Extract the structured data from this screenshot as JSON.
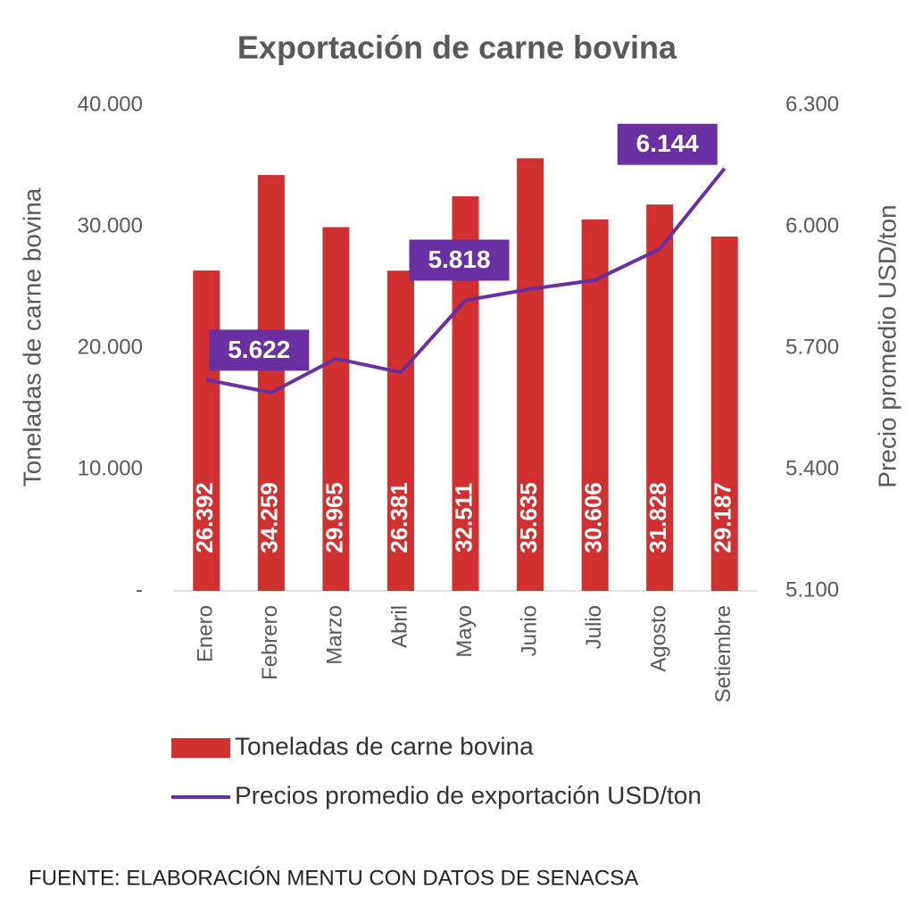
{
  "chart_data": {
    "type": "bar",
    "title": "Exportación de carne bovina",
    "categories": [
      "Enero",
      "Febrero",
      "Marzo",
      "Abril",
      "Mayo",
      "Junio",
      "Julio",
      "Agosto",
      "Setiembre"
    ],
    "series": [
      {
        "name": "Toneladas de carne bovina",
        "type": "bar",
        "color": "#d0302f",
        "values": [
          26392,
          34259,
          29965,
          26381,
          32511,
          35635,
          30606,
          31828,
          29187
        ],
        "value_labels": [
          "26.392",
          "34.259",
          "29.965",
          "26.381",
          "32.511",
          "35.635",
          "30.606",
          "31.828",
          "29.187"
        ]
      },
      {
        "name": "Precios promedio de exportación USD/ton",
        "type": "line",
        "axis": "y2",
        "color": "#6a2fa0",
        "values": [
          5622,
          5590,
          5674,
          5640,
          5818,
          5846,
          5868,
          5945,
          6144
        ],
        "value_labels": [
          "5.622",
          null,
          null,
          null,
          "5.818",
          null,
          null,
          null,
          "6.144"
        ]
      }
    ],
    "y_label": "Toneladas de carne bovina",
    "y2_label": "Precio promedio USD/ton",
    "ylim": [
      0,
      40000
    ],
    "yticks": [
      {
        "value": 0,
        "label": "-"
      },
      {
        "value": 10000,
        "label": "10.000"
      },
      {
        "value": 20000,
        "label": "20.000"
      },
      {
        "value": 30000,
        "label": "30.000"
      },
      {
        "value": 40000,
        "label": "40.000"
      }
    ],
    "y2lim": [
      5100,
      6300
    ],
    "y2ticks": [
      {
        "value": 5100,
        "label": "5.100"
      },
      {
        "value": 5400,
        "label": "5.400"
      },
      {
        "value": 5700,
        "label": "5.700"
      },
      {
        "value": 6000,
        "label": "6.000"
      },
      {
        "value": 6300,
        "label": "6.300"
      }
    ],
    "source": "FUENTE: ELABORACIÓN MENTU CON DATOS DE SENACSA"
  }
}
